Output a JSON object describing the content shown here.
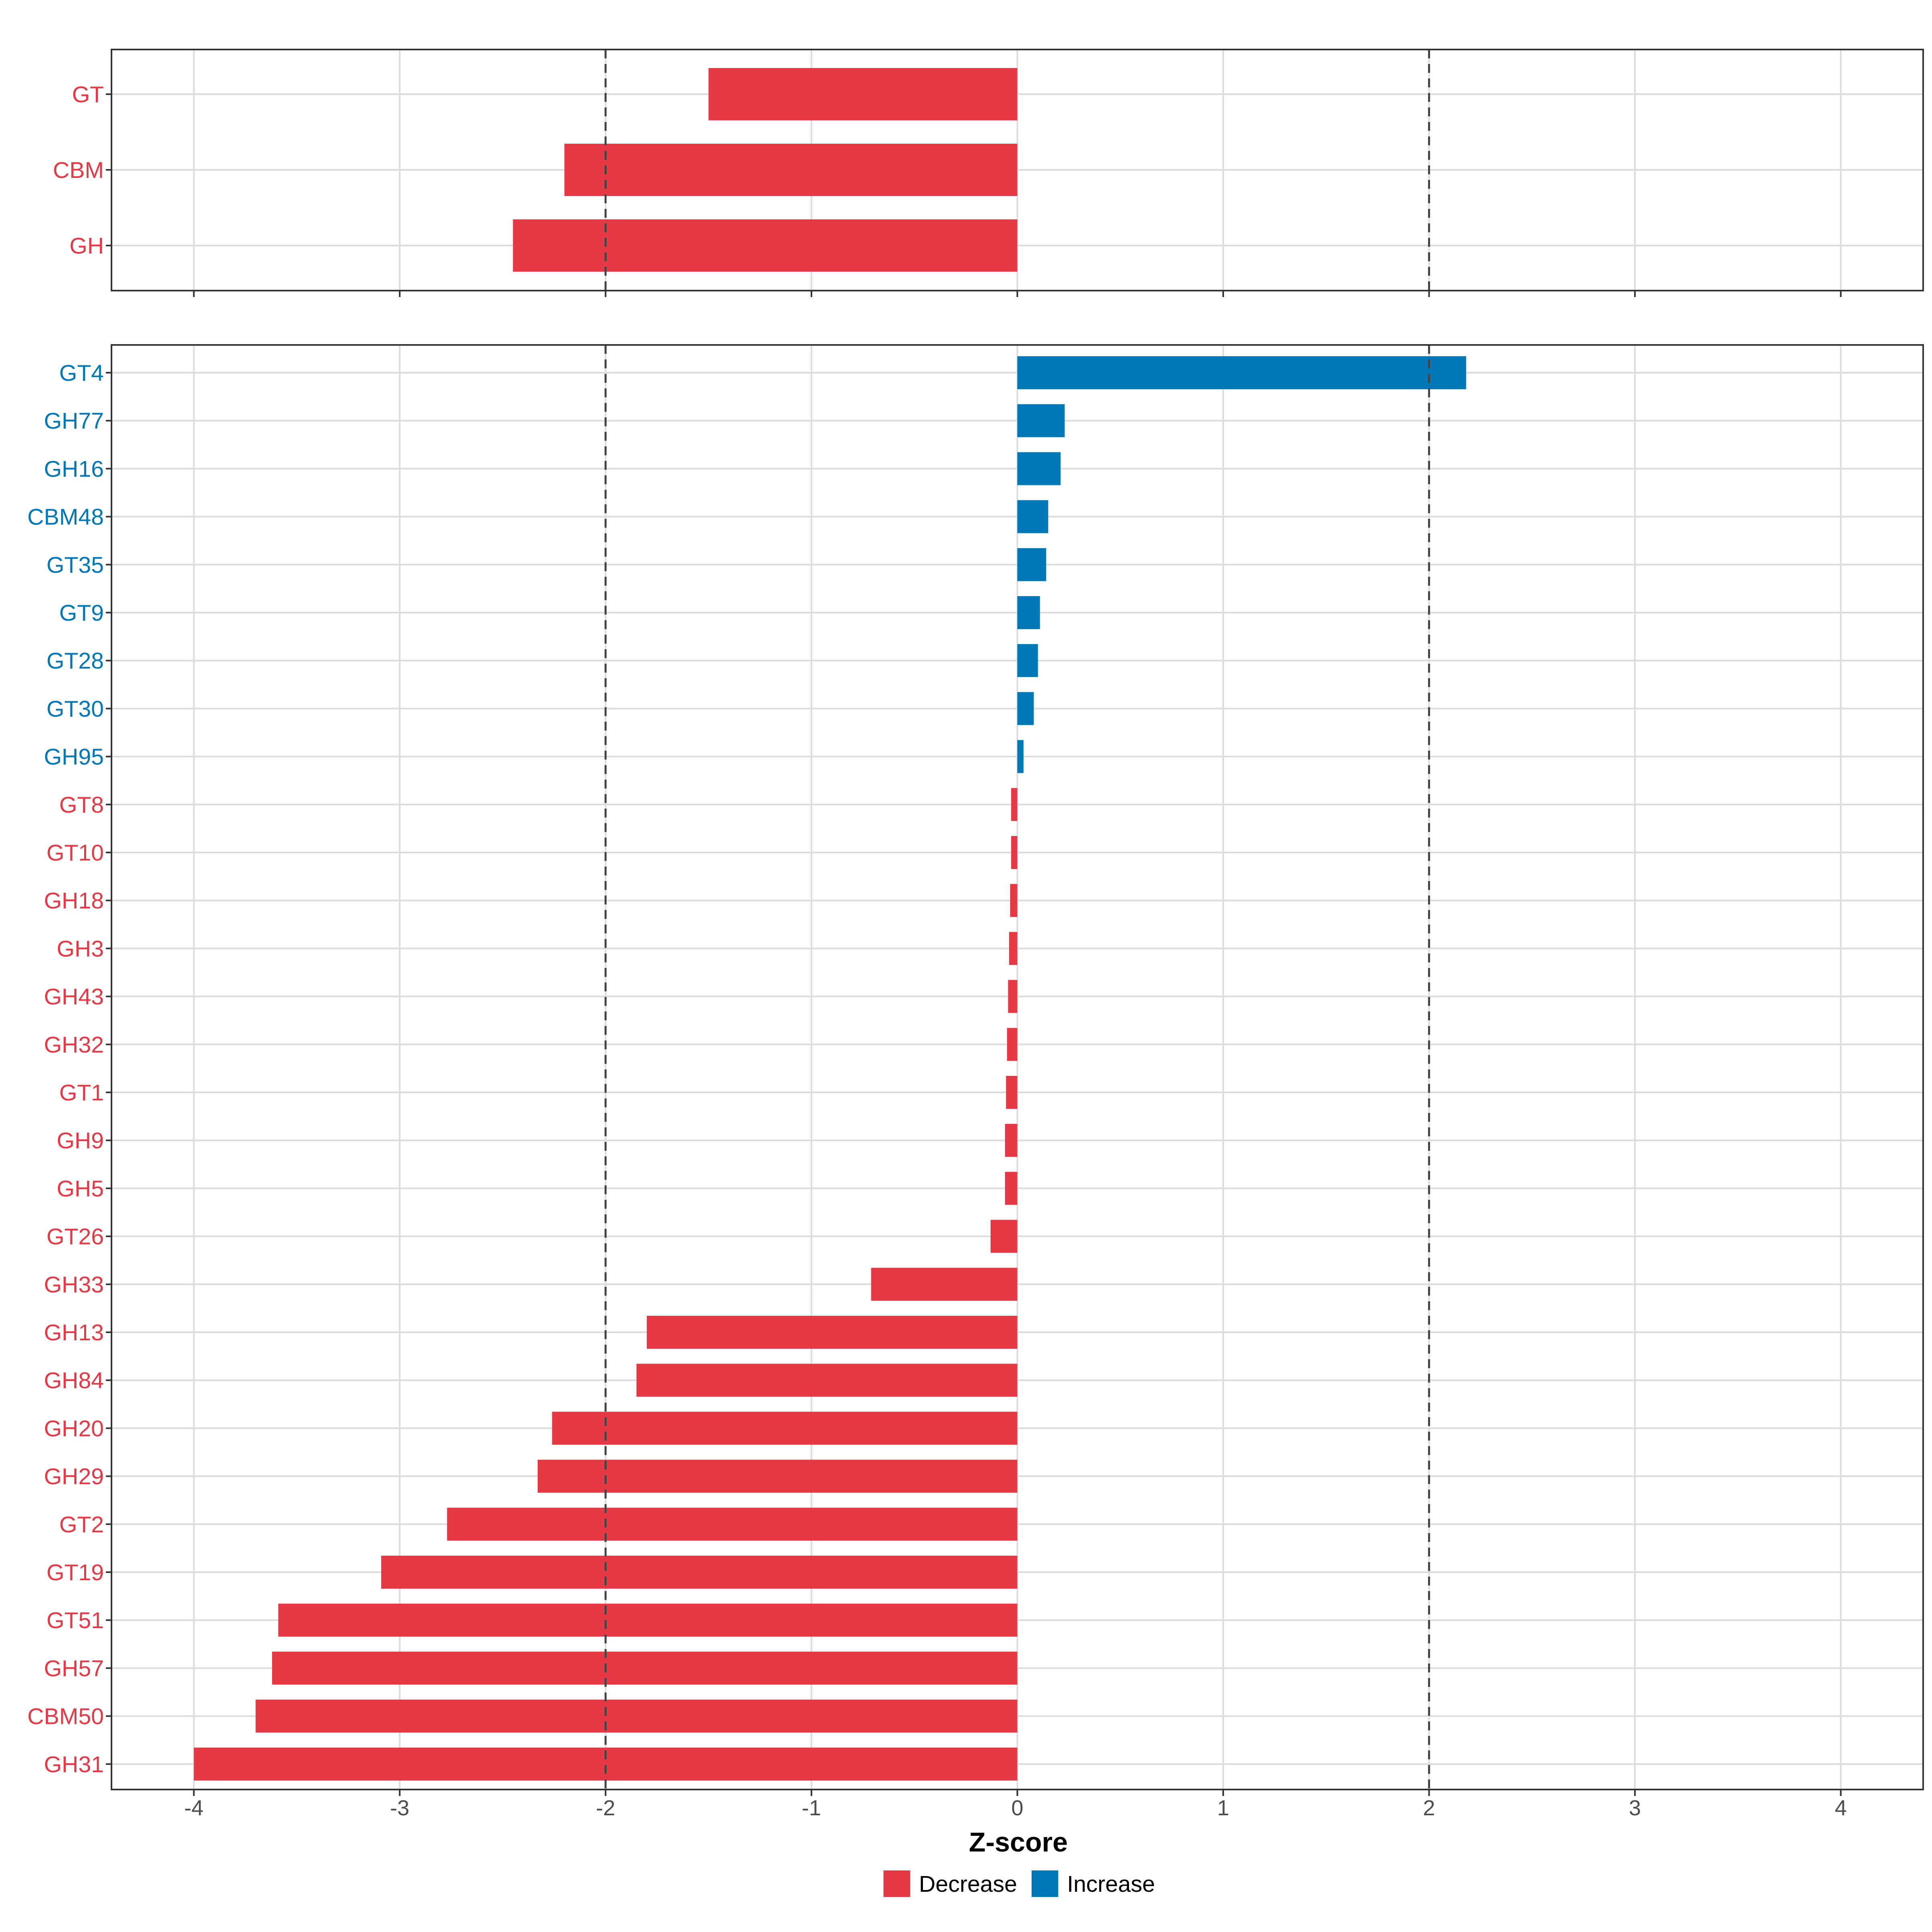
{
  "chart_data": {
    "type": "bar",
    "orientation": "horizontal",
    "xlabel": "Z-score",
    "xlim": [
      -4.4,
      4.4
    ],
    "xticks": [
      -4,
      -3,
      -2,
      -1,
      0,
      1,
      2,
      3,
      4
    ],
    "xtick_labels": [
      "-4",
      "-3",
      "-2",
      "-1",
      "0",
      "1",
      "2",
      "3",
      "4"
    ],
    "reference_lines": [
      -2,
      2
    ],
    "colors": {
      "Decrease": "#E63946",
      "Increase": "#0077B6"
    },
    "legend": {
      "position": "bottom",
      "entries": [
        "Decrease",
        "Increase"
      ]
    },
    "panels": [
      {
        "name": "top",
        "categories": [
          "GT",
          "CBM",
          "GH"
        ],
        "values": [
          -1.5,
          -2.2,
          -2.45
        ],
        "direction": [
          "Decrease",
          "Decrease",
          "Decrease"
        ]
      },
      {
        "name": "bottom",
        "categories": [
          "GT4",
          "GH77",
          "GH16",
          "CBM48",
          "GT35",
          "GT9",
          "GT28",
          "GT30",
          "GH95",
          "GT8",
          "GT10",
          "GH18",
          "GH3",
          "GH43",
          "GH32",
          "GT1",
          "GH9",
          "GH5",
          "GT26",
          "GH33",
          "GH13",
          "GH84",
          "GH20",
          "GH29",
          "GT2",
          "GT19",
          "GT51",
          "GH57",
          "CBM50",
          "GH31"
        ],
        "values": [
          2.18,
          0.23,
          0.21,
          0.15,
          0.14,
          0.11,
          0.1,
          0.08,
          0.03,
          -0.03,
          -0.03,
          -0.035,
          -0.04,
          -0.045,
          -0.05,
          -0.055,
          -0.06,
          -0.06,
          -0.13,
          -0.71,
          -1.8,
          -1.85,
          -2.26,
          -2.33,
          -2.77,
          -3.09,
          -3.59,
          -3.62,
          -3.7,
          -4.0
        ],
        "direction": [
          "Increase",
          "Increase",
          "Increase",
          "Increase",
          "Increase",
          "Increase",
          "Increase",
          "Increase",
          "Increase",
          "Decrease",
          "Decrease",
          "Decrease",
          "Decrease",
          "Decrease",
          "Decrease",
          "Decrease",
          "Decrease",
          "Decrease",
          "Decrease",
          "Decrease",
          "Decrease",
          "Decrease",
          "Decrease",
          "Decrease",
          "Decrease",
          "Decrease",
          "Decrease",
          "Decrease",
          "Decrease",
          "Decrease"
        ]
      }
    ]
  }
}
